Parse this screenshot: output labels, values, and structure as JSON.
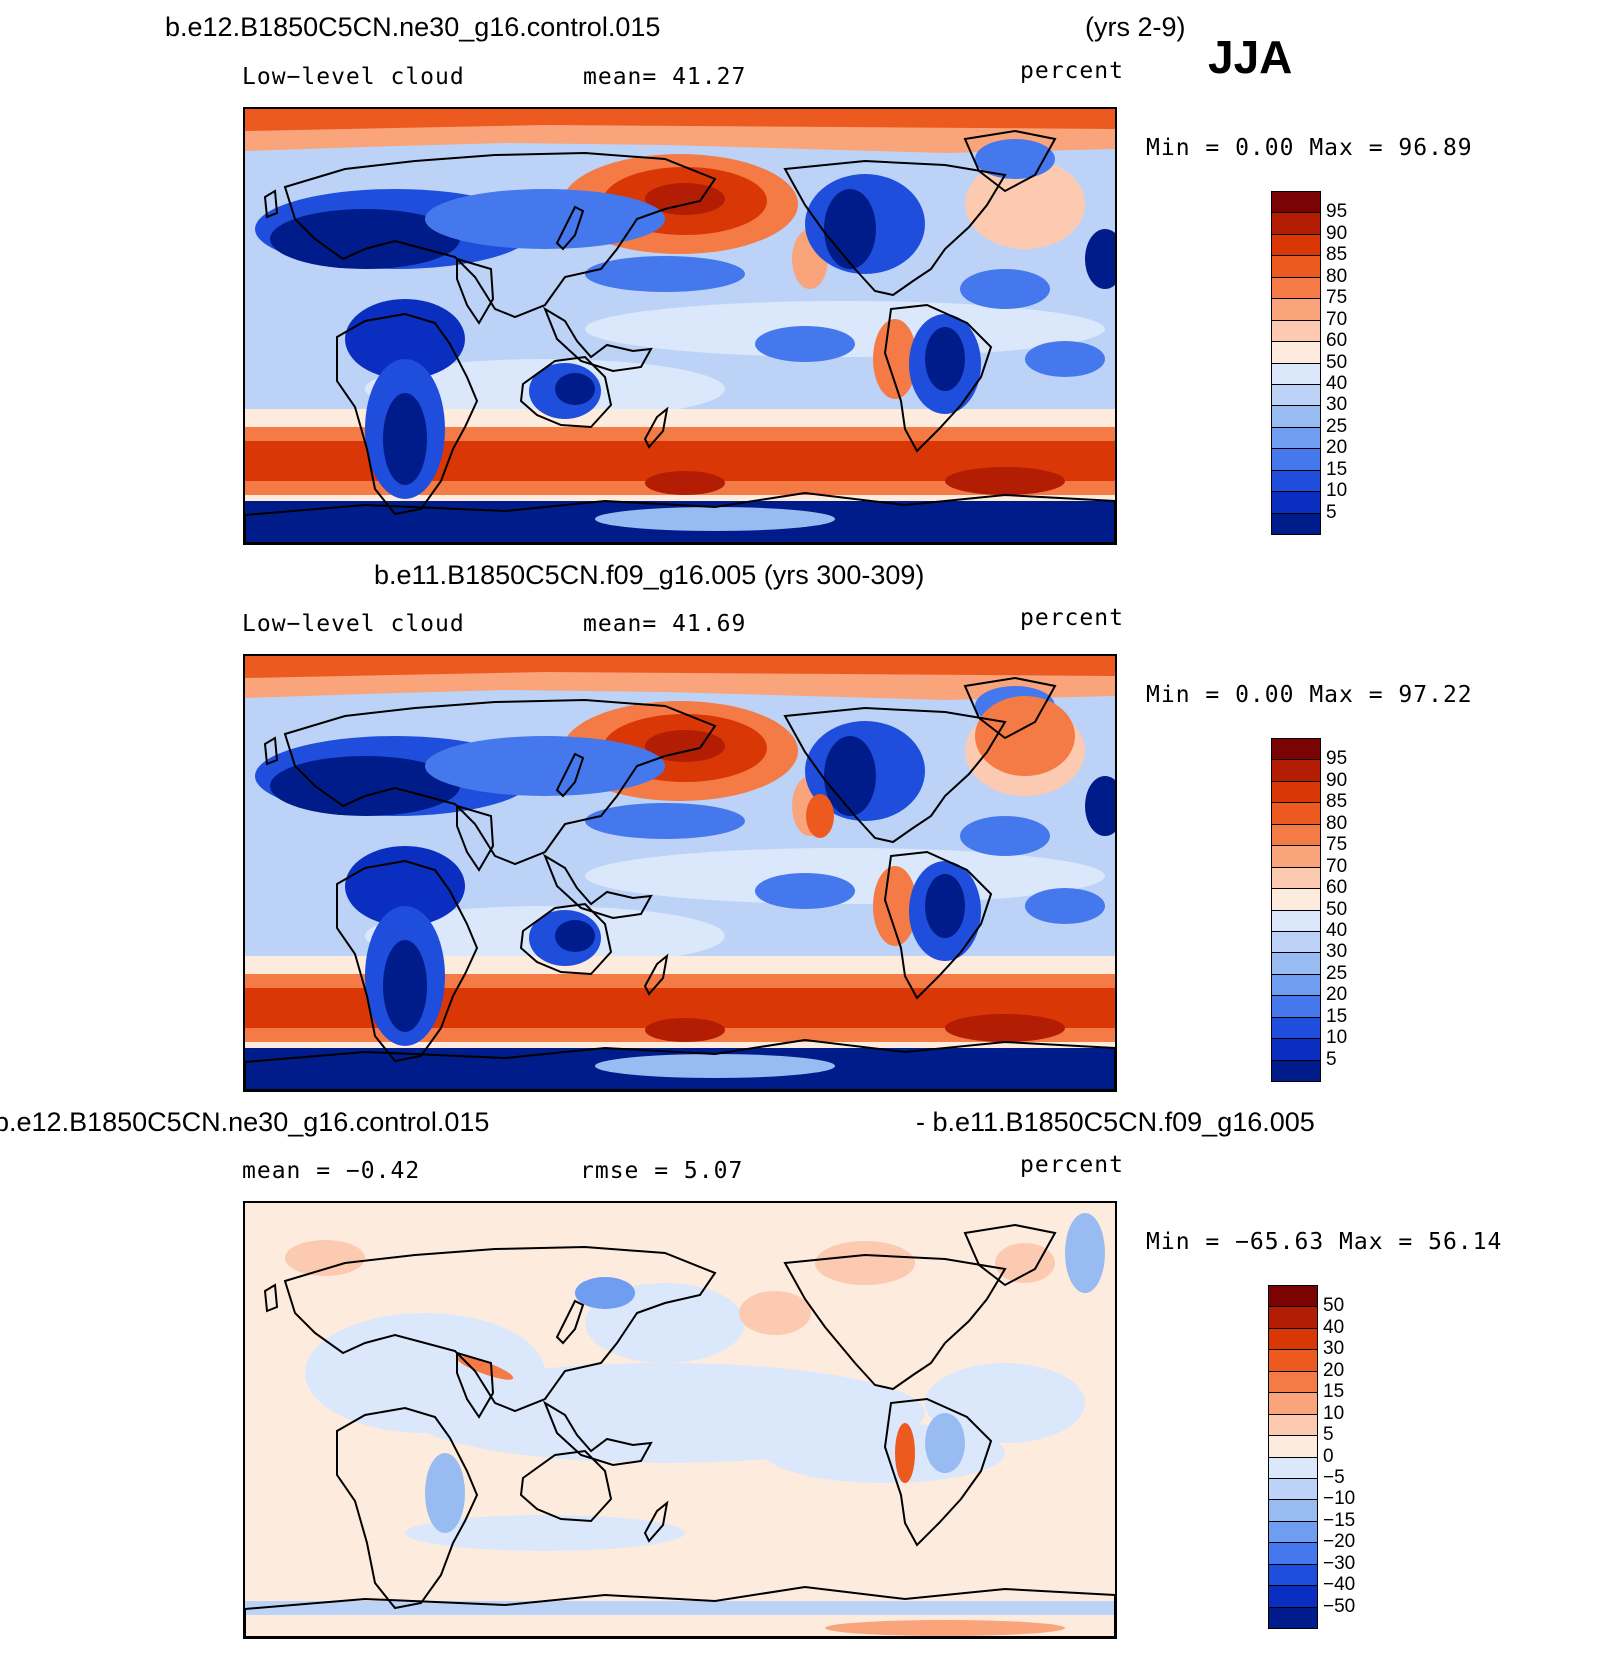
{
  "season": "JJA",
  "panels": [
    {
      "title": "b.e12.B1850C5CN.ne30_g16.control.015",
      "title_right": "(yrs 2-9)",
      "left_label": "Low−level cloud",
      "center_label": "mean=   41.27",
      "units": "percent",
      "minmax": "Min =    0.00  Max =   96.89",
      "colorbar_labels": [
        "95",
        "90",
        "85",
        "80",
        "75",
        "70",
        "60",
        "50",
        "40",
        "30",
        "25",
        "20",
        "15",
        "10",
        "5"
      ],
      "style": "abs"
    },
    {
      "title": "b.e11.B1850C5CN.f09_g16.005 (yrs 300-309)",
      "title_right": "",
      "left_label": "Low−level cloud",
      "center_label": "mean=   41.69",
      "units": "percent",
      "minmax": "Min =    0.00  Max =   97.22",
      "colorbar_labels": [
        "95",
        "90",
        "85",
        "80",
        "75",
        "70",
        "60",
        "50",
        "40",
        "30",
        "25",
        "20",
        "15",
        "10",
        "5"
      ],
      "style": "abs"
    },
    {
      "title": "b.e12.B1850C5CN.ne30_g16.control.015",
      "title_right": "- b.e11.B1850C5CN.f09_g16.005",
      "left_label": "mean =   −0.42",
      "center_label": "rmse =    5.07",
      "units": "percent",
      "minmax": "Min = −65.63  Max =   56.14",
      "colorbar_labels": [
        "50",
        "40",
        "30",
        "20",
        "15",
        "10",
        "5",
        "0",
        "−5",
        "−10",
        "−15",
        "−20",
        "−30",
        "−40",
        "−50"
      ],
      "style": "diff"
    }
  ],
  "colors": {
    "scale": [
      "#7a0403",
      "#b31d04",
      "#d93806",
      "#ec5a1f",
      "#f47b45",
      "#f9a47b",
      "#fccab0",
      "#fdebdd",
      "#dbe8fb",
      "#bcd3f7",
      "#98bbf2",
      "#6f9ef0",
      "#4478ec",
      "#1f4edc",
      "#0a2fc0",
      "#001c8a"
    ]
  }
}
